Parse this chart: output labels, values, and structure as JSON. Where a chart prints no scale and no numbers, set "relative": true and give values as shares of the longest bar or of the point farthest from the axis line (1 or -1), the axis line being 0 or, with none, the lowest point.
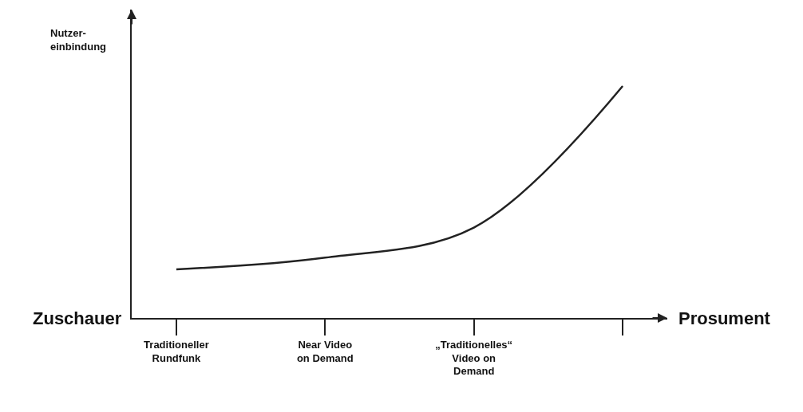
{
  "chart_data": {
    "type": "line",
    "relative": true,
    "categories": [
      "Traditioneller\nRundfunk",
      "Near Video\non Demand",
      "„Traditionelles“\nVideo on\nDemand",
      null
    ],
    "values": [
      0.21,
      0.26,
      0.39,
      1
    ],
    "color": "#222222",
    "marker": "none",
    "line_style": "solid",
    "legend": false,
    "xlabel": "Prosument",
    "ylabel": "Nutzer-\neinbindung",
    "annotations": [
      "Zuschauer"
    ]
  }
}
